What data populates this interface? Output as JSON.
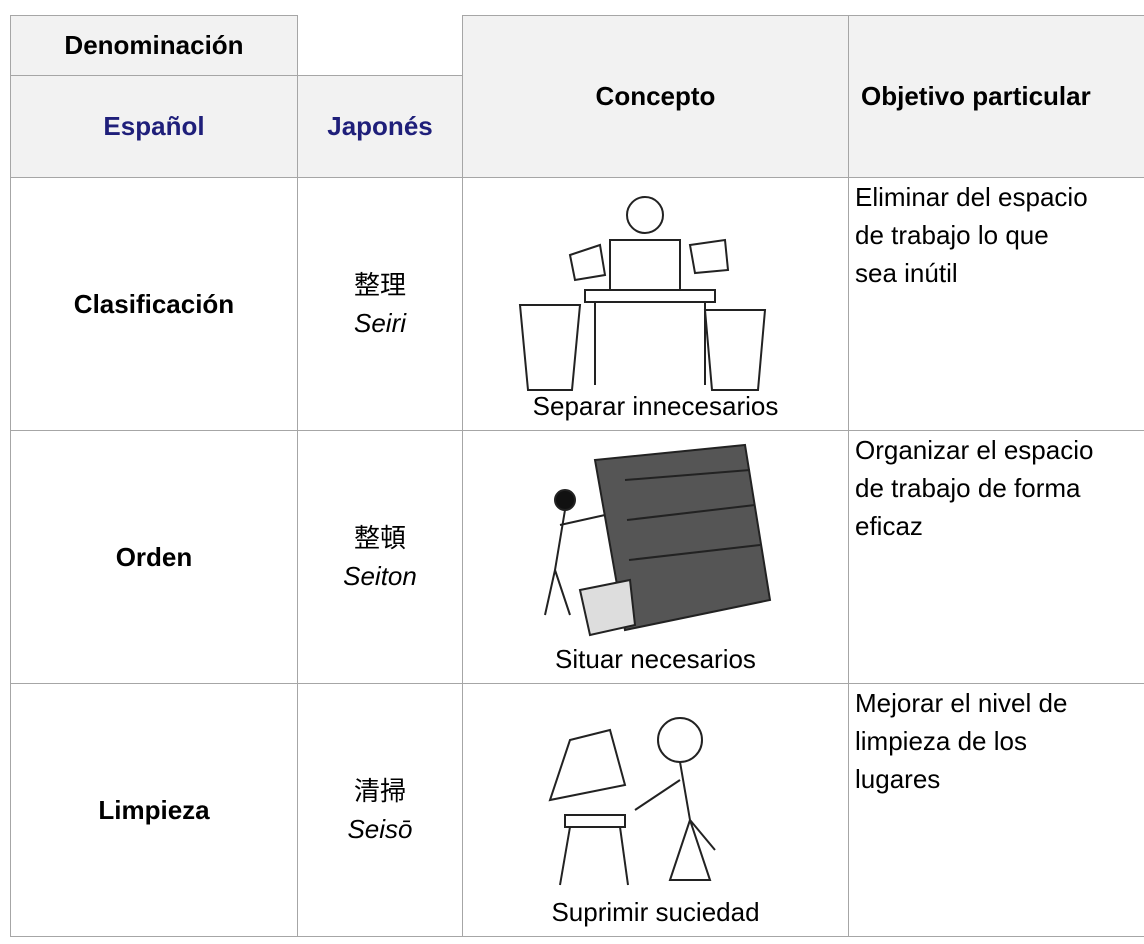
{
  "table": {
    "header": {
      "group": "Denominación",
      "columns": [
        "Español",
        "Japonés",
        "Concepto",
        "Objetivo particular"
      ]
    },
    "rows": [
      {
        "spanish": "Clasificación",
        "kanji": "整理",
        "romaji": "Seiri",
        "concept": "Separar innecesarios",
        "objective": [
          "Eliminar del espacio",
          "de trabajo lo que",
          "sea inútil"
        ]
      },
      {
        "spanish": "Orden",
        "kanji": "整頓",
        "romaji": "Seiton",
        "concept": "Situar necesarios",
        "objective": [
          "Organizar el espacio",
          "de trabajo de forma",
          "eficaz"
        ]
      },
      {
        "spanish": "Limpieza",
        "kanji": "清掃",
        "romaji": "Seisō",
        "concept": "Suprimir suciedad",
        "objective": [
          "Mejorar el nivel de",
          "limpieza de los",
          "lugares"
        ]
      }
    ]
  }
}
